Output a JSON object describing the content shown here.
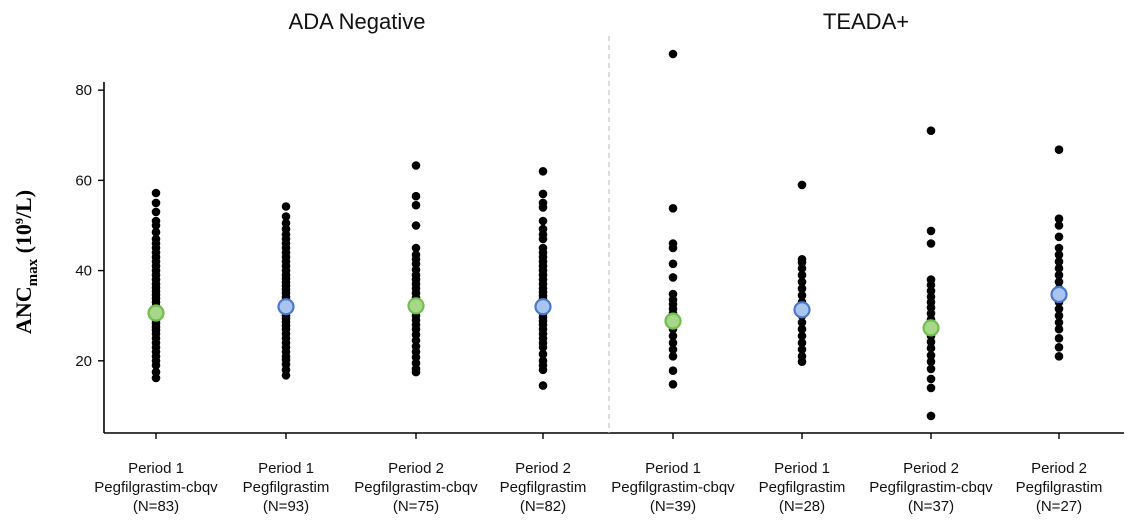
{
  "chart_data": {
    "type": "scatter",
    "ylabel_parts": {
      "main": "ANC",
      "sub": "max",
      "pre_sup": "  (10",
      "sup": "9",
      "post": "/L)"
    },
    "yticks": [
      20,
      40,
      60,
      80
    ],
    "ylim": [
      4,
      92
    ],
    "panels": [
      {
        "title": "ADA Negative"
      },
      {
        "title": "TEADA+"
      }
    ],
    "colors": {
      "points": "#000000",
      "green_fill": "#a6d78a",
      "green_edge": "#6fbf4a",
      "blue_fill": "#a9c4ee",
      "blue_edge": "#4a78c9",
      "divider": "#bbbbbb"
    },
    "groups": [
      {
        "panel": 0,
        "label": [
          "Period 1",
          "Pegfilgrastim-cbqv",
          "(N=83)"
        ],
        "mean": 30.6,
        "mean_color": "green",
        "points": [
          16.2,
          17.5,
          19,
          20,
          21,
          22,
          23,
          24,
          25,
          26,
          26.8,
          27.5,
          28.3,
          29,
          29.6,
          30,
          30.4,
          31,
          31.6,
          32.2,
          33,
          33.8,
          34.6,
          35.4,
          36.2,
          37,
          38,
          39,
          40,
          41,
          42,
          43,
          44,
          45,
          46,
          47,
          48.5,
          50,
          51,
          53,
          55,
          57.2
        ]
      },
      {
        "panel": 0,
        "label": [
          "Period 1",
          "Pegfilgrastim",
          "(N=93)"
        ],
        "mean": 32.0,
        "mean_color": "blue",
        "points": [
          16.8,
          18,
          19.2,
          20.2,
          21,
          22,
          23,
          24,
          25,
          26,
          27,
          27.8,
          28.6,
          29.4,
          30,
          30.6,
          31.2,
          31.8,
          32.4,
          33,
          33.6,
          34.2,
          35,
          35.8,
          36.6,
          37.4,
          38.2,
          39,
          40,
          41,
          42,
          43,
          44,
          45,
          46,
          47,
          48,
          49.2,
          50.5,
          52,
          54.2
        ]
      },
      {
        "panel": 0,
        "label": [
          "Period 2",
          "Pegfilgrastim-cbqv",
          "(N=75)"
        ],
        "mean": 32.2,
        "mean_color": "green",
        "points": [
          17.5,
          18.2,
          19.5,
          20.8,
          22,
          23.2,
          24.5,
          25.8,
          27,
          28,
          29,
          30,
          31,
          32,
          33,
          34,
          35,
          36,
          37,
          38,
          39,
          40.2,
          41.5,
          42.5,
          43.5,
          45,
          50,
          54.5,
          56.5,
          63.3
        ]
      },
      {
        "panel": 0,
        "label": [
          "Period 2",
          "Pegfilgrastim",
          "(N=82)"
        ],
        "mean": 32.0,
        "mean_color": "blue",
        "points": [
          14.5,
          18,
          19,
          20,
          21.5,
          23,
          24,
          25,
          26,
          27,
          28,
          28.8,
          29.6,
          30.4,
          31.2,
          32,
          32.8,
          33.6,
          34.4,
          35.2,
          36,
          37,
          38,
          39,
          40,
          41,
          42,
          43,
          44,
          45,
          47,
          48,
          49.2,
          51,
          54,
          55,
          57,
          62
        ]
      },
      {
        "panel": 1,
        "label": [
          "Period 1",
          "Pegfilgrastim-cbqv",
          "(N=39)"
        ],
        "mean": 28.8,
        "mean_color": "green",
        "points": [
          14.8,
          17.8,
          21,
          22.5,
          24,
          25.5,
          27,
          28.3,
          29.5,
          30.5,
          31.5,
          32.5,
          33.5,
          34.8,
          38.5,
          41.5,
          45,
          46,
          53.8,
          88
        ]
      },
      {
        "panel": 1,
        "label": [
          "Period 1",
          "Pegfilgrastim",
          "(N=28)"
        ],
        "mean": 31.3,
        "mean_color": "blue",
        "points": [
          19.8,
          21,
          22.5,
          24,
          25.5,
          27,
          28.5,
          30,
          31.5,
          33,
          34.5,
          36,
          37.5,
          39,
          40.5,
          41.8,
          42.5,
          59
        ]
      },
      {
        "panel": 1,
        "label": [
          "Period 2",
          "Pegfilgrastim-cbqv",
          "(N=37)"
        ],
        "mean": 27.3,
        "mean_color": "green",
        "points": [
          7.8,
          14,
          16,
          18.2,
          19.8,
          21.2,
          22.8,
          24.2,
          25.5,
          26.8,
          28,
          29.2,
          30.5,
          31.8,
          33,
          34.2,
          35.5,
          36.8,
          38,
          46,
          48.8,
          71
        ]
      },
      {
        "panel": 1,
        "label": [
          "Period 2",
          "Pegfilgrastim",
          "(N=27)"
        ],
        "mean": 34.7,
        "mean_color": "blue",
        "points": [
          21,
          23,
          25,
          27,
          28.5,
          30,
          31.5,
          33,
          34.5,
          36,
          37.5,
          39,
          40.5,
          42,
          43.5,
          45,
          47.5,
          50,
          51.5,
          66.8
        ]
      }
    ]
  }
}
